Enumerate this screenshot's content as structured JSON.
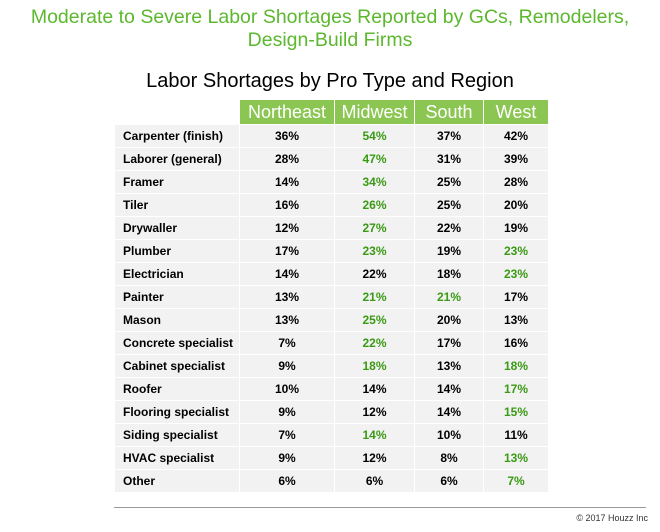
{
  "title": "Moderate to Severe Labor Shortages Reported by GCs, Remodelers, Design-Build Firms",
  "footer": "© 2017 Houzz Inc",
  "colors": {
    "title": "#5cb82e",
    "header_bg": "#8bc653",
    "highlight": "#3a9a14"
  },
  "chart_data": {
    "type": "table",
    "title": "Labor Shortages by Pro Type and Region",
    "columns": [
      "Northeast",
      "Midwest",
      "South",
      "West"
    ],
    "rows": [
      {
        "label": "Carpenter (finish)",
        "values": [
          "36%",
          "54%",
          "37%",
          "42%"
        ],
        "highlighted": [
          false,
          true,
          false,
          false
        ]
      },
      {
        "label": "Laborer (general)",
        "values": [
          "28%",
          "47%",
          "31%",
          "39%"
        ],
        "highlighted": [
          false,
          true,
          false,
          false
        ]
      },
      {
        "label": "Framer",
        "values": [
          "14%",
          "34%",
          "25%",
          "28%"
        ],
        "highlighted": [
          false,
          true,
          false,
          false
        ]
      },
      {
        "label": "Tiler",
        "values": [
          "16%",
          "26%",
          "25%",
          "20%"
        ],
        "highlighted": [
          false,
          true,
          false,
          false
        ]
      },
      {
        "label": "Drywaller",
        "values": [
          "12%",
          "27%",
          "22%",
          "19%"
        ],
        "highlighted": [
          false,
          true,
          false,
          false
        ]
      },
      {
        "label": "Plumber",
        "values": [
          "17%",
          "23%",
          "19%",
          "23%"
        ],
        "highlighted": [
          false,
          true,
          false,
          true
        ]
      },
      {
        "label": "Electrician",
        "values": [
          "14%",
          "22%",
          "18%",
          "23%"
        ],
        "highlighted": [
          false,
          false,
          false,
          true
        ]
      },
      {
        "label": "Painter",
        "values": [
          "13%",
          "21%",
          "21%",
          "17%"
        ],
        "highlighted": [
          false,
          true,
          true,
          false
        ]
      },
      {
        "label": "Mason",
        "values": [
          "13%",
          "25%",
          "20%",
          "13%"
        ],
        "highlighted": [
          false,
          true,
          false,
          false
        ]
      },
      {
        "label": "Concrete specialist",
        "values": [
          "7%",
          "22%",
          "17%",
          "16%"
        ],
        "highlighted": [
          false,
          true,
          false,
          false
        ]
      },
      {
        "label": "Cabinet specialist",
        "values": [
          "9%",
          "18%",
          "13%",
          "18%"
        ],
        "highlighted": [
          false,
          true,
          false,
          true
        ]
      },
      {
        "label": "Roofer",
        "values": [
          "10%",
          "14%",
          "14%",
          "17%"
        ],
        "highlighted": [
          false,
          false,
          false,
          true
        ]
      },
      {
        "label": "Flooring specialist",
        "values": [
          "9%",
          "12%",
          "14%",
          "15%"
        ],
        "highlighted": [
          false,
          false,
          false,
          true
        ]
      },
      {
        "label": "Siding specialist",
        "values": [
          "7%",
          "14%",
          "10%",
          "11%"
        ],
        "highlighted": [
          false,
          true,
          false,
          false
        ]
      },
      {
        "label": "HVAC specialist",
        "values": [
          "9%",
          "12%",
          "8%",
          "13%"
        ],
        "highlighted": [
          false,
          false,
          false,
          true
        ]
      },
      {
        "label": "Other",
        "values": [
          "6%",
          "6%",
          "6%",
          "7%"
        ],
        "highlighted": [
          false,
          false,
          false,
          true
        ]
      }
    ]
  }
}
